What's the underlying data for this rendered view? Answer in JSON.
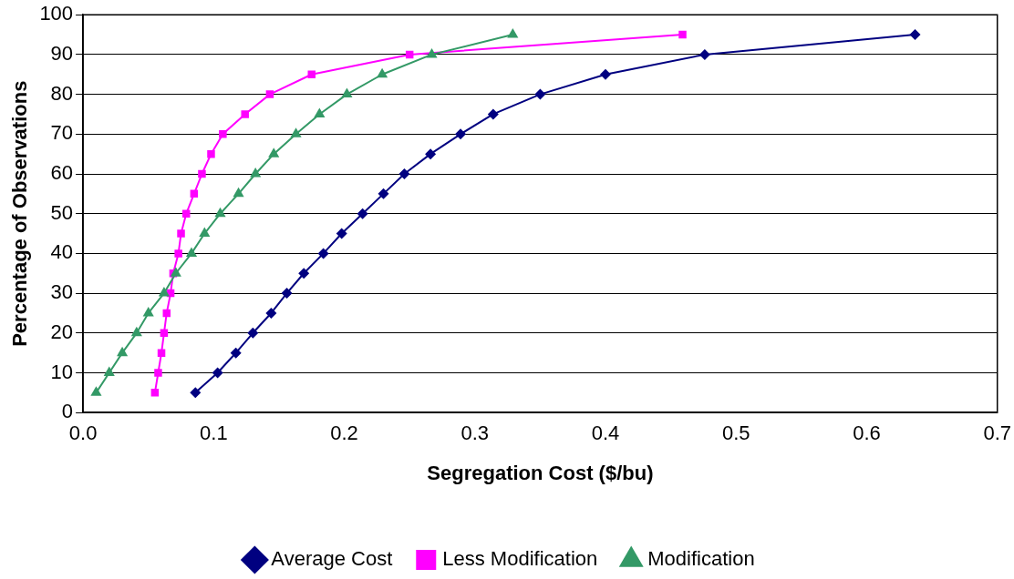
{
  "chart_data": {
    "type": "line",
    "xlabel": "Segregation Cost ($/bu)",
    "ylabel": "Percentage of Observations",
    "xlim": [
      0,
      0.7
    ],
    "xticks": [
      {
        "value": 0,
        "label": "0.0"
      },
      0.1,
      0.2,
      0.3,
      0.4,
      0.5,
      0.6,
      0.7
    ],
    "ylim": [
      0,
      100
    ],
    "yticks": [
      0,
      10,
      20,
      30,
      40,
      50,
      60,
      70,
      80,
      90,
      100
    ],
    "grid": "y",
    "legend": "bottom",
    "line_style": "solid",
    "series": [
      {
        "name": "Average Cost",
        "color": "#000080",
        "marker": "diamond",
        "x": [
          0.086,
          0.103,
          0.117,
          0.13,
          0.144,
          0.156,
          0.169,
          0.184,
          0.198,
          0.214,
          0.23,
          0.246,
          0.266,
          0.289,
          0.314,
          0.35,
          0.4,
          0.476,
          0.637
        ],
        "values": [
          5,
          10,
          15,
          20,
          25,
          30,
          35,
          40,
          45,
          50,
          55,
          60,
          65,
          70,
          75,
          80,
          85,
          90,
          95
        ]
      },
      {
        "name": "Less Modification",
        "color": "#ff00ff",
        "marker": "square",
        "x": [
          0.055,
          0.0575,
          0.06,
          0.062,
          0.064,
          0.067,
          0.069,
          0.073,
          0.075,
          0.079,
          0.085,
          0.091,
          0.098,
          0.107,
          0.124,
          0.143,
          0.175,
          0.25,
          0.459
        ],
        "values": [
          5,
          10,
          15,
          20,
          25,
          30,
          35,
          40,
          45,
          50,
          55,
          60,
          65,
          70,
          75,
          80,
          85,
          90,
          95
        ]
      },
      {
        "name": "Modification",
        "color": "#339966",
        "marker": "triangle",
        "x": [
          0.01,
          0.02,
          0.03,
          0.041,
          0.05,
          0.062,
          0.071,
          0.083,
          0.093,
          0.105,
          0.119,
          0.132,
          0.146,
          0.163,
          0.181,
          0.202,
          0.229,
          0.267,
          0.329
        ],
        "values": [
          5,
          10,
          15,
          20,
          25,
          30,
          35,
          40,
          45,
          50,
          55,
          60,
          65,
          70,
          75,
          80,
          85,
          90,
          95
        ]
      }
    ]
  }
}
